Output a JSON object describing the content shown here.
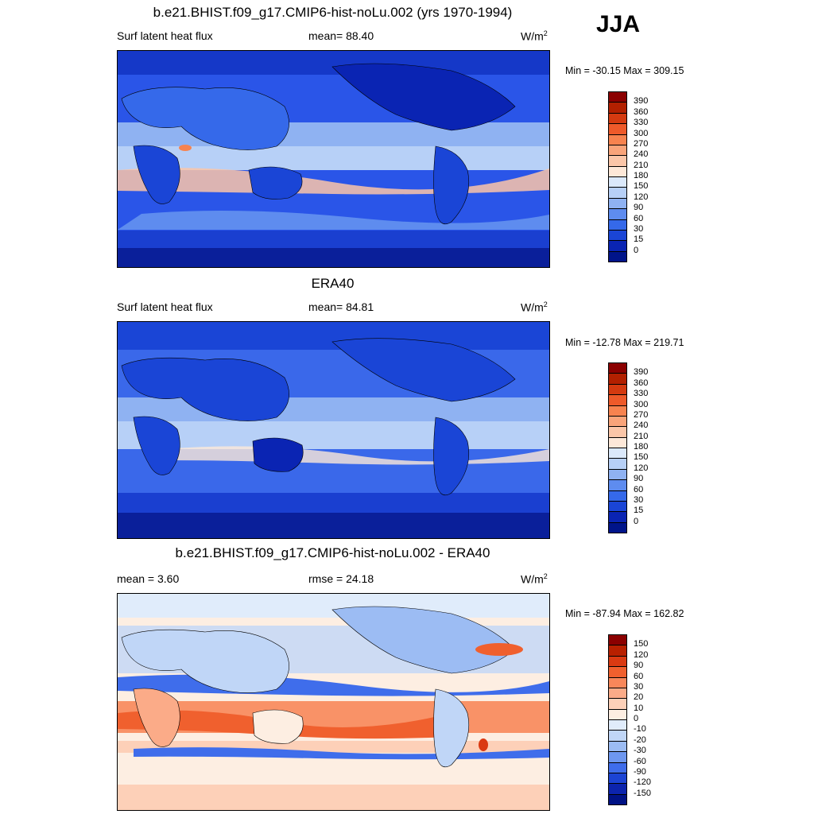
{
  "header": {
    "season": "JJA"
  },
  "panels": [
    {
      "title": "b.e21.BHIST.f09_g17.CMIP6-hist-noLu.002 (yrs 1970-1994)",
      "left_label": "Surf latent heat flux",
      "center_label": "mean=  88.40",
      "units": "W/m",
      "units_sup": "2",
      "minmax": "Min = -30.15 Max = 309.15",
      "colorbar_labels": [
        "390",
        "360",
        "330",
        "300",
        "270",
        "240",
        "210",
        "180",
        "150",
        "120",
        "90",
        "60",
        "30",
        "15",
        "0"
      ]
    },
    {
      "title": "ERA40",
      "left_label": "Surf latent heat flux",
      "center_label": "mean=  84.81",
      "units": "W/m",
      "units_sup": "2",
      "minmax": "Min = -12.78 Max = 219.71",
      "colorbar_labels": [
        "390",
        "360",
        "330",
        "300",
        "270",
        "240",
        "210",
        "180",
        "150",
        "120",
        "90",
        "60",
        "30",
        "15",
        "0"
      ]
    },
    {
      "title": "b.e21.BHIST.f09_g17.CMIP6-hist-noLu.002 - ERA40",
      "left_label": "mean =   3.60",
      "center_label": "rmse =  24.18",
      "units": "W/m",
      "units_sup": "2",
      "minmax": "Min = -87.94 Max = 162.82",
      "colorbar_labels": [
        "150",
        "120",
        "90",
        "60",
        "30",
        "20",
        "10",
        "0",
        "-10",
        "-20",
        "-30",
        "-60",
        "-90",
        "-120",
        "-150"
      ]
    }
  ],
  "colors": {
    "abs_scale": [
      "#8b0000",
      "#b22000",
      "#d43a10",
      "#ee5a2a",
      "#f7834f",
      "#f9a47a",
      "#fbc6a8",
      "#fde8d8",
      "#dbe9fb",
      "#b7d0f7",
      "#8fb2f2",
      "#5e8cef",
      "#3569ea",
      "#1a45d6",
      "#0a24b3",
      "#00148a"
    ],
    "diff_scale": [
      "#8b0000",
      "#b82000",
      "#da3a12",
      "#f0602e",
      "#f8875a",
      "#fbab88",
      "#fdd0b8",
      "#fdeee2",
      "#e0ecfb",
      "#c0d6f7",
      "#9cbcf3",
      "#6e97ef",
      "#3f6deb",
      "#1c44d4",
      "#0c24ad",
      "#001285"
    ]
  }
}
